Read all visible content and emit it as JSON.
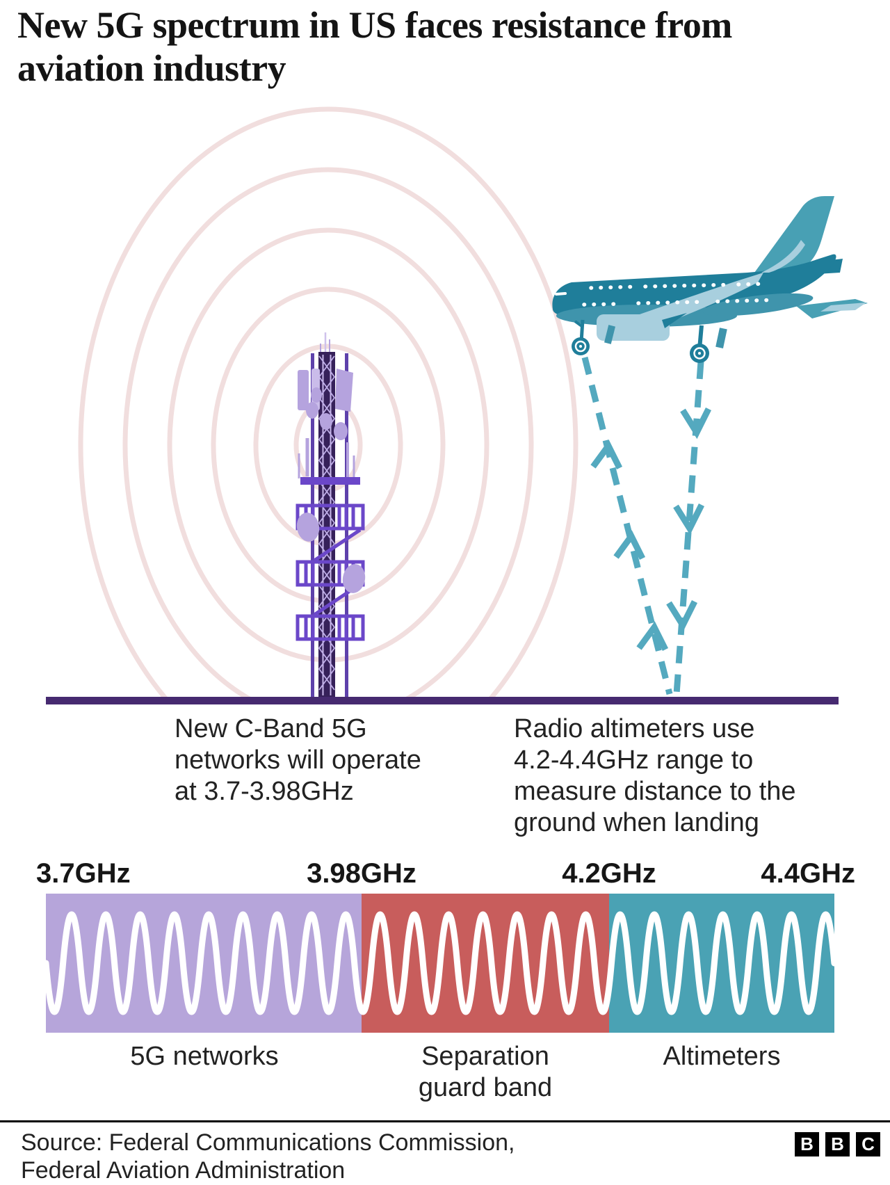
{
  "title": "New 5G spectrum in US faces resistance from aviation industry",
  "illustration": {
    "tower_caption_lines": [
      "New C-Band 5G",
      "networks will operate",
      "at 3.7-3.98GHz"
    ],
    "plane_caption_lines": [
      "Radio altimeters use",
      "4.2-4.4GHz range to",
      "measure distance to the",
      "ground when landing"
    ],
    "icons": [
      "cell-tower-icon",
      "radio-waves-icon",
      "airplane-icon",
      "altimeter-signal-icons"
    ]
  },
  "chart_data": {
    "type": "spectrum-band-diagram",
    "axis_range_ghz": [
      3.7,
      4.4
    ],
    "ticks": [
      {
        "label": "3.7GHz",
        "value": 3.7
      },
      {
        "label": "3.98GHz",
        "value": 3.98
      },
      {
        "label": "4.2GHz",
        "value": 4.2
      },
      {
        "label": "4.4GHz",
        "value": 4.4
      }
    ],
    "bands": [
      {
        "label": "5G networks",
        "from_ghz": 3.7,
        "to_ghz": 3.98,
        "color": "#b6a5da"
      },
      {
        "label": "Separation\nguard band",
        "from_ghz": 3.98,
        "to_ghz": 4.2,
        "color": "#c85d5c"
      },
      {
        "label": "Altimeters",
        "from_ghz": 4.2,
        "to_ghz": 4.4,
        "color": "#4aa2b4"
      }
    ],
    "wave_color": "#ffffff",
    "legend_position": "below-bands",
    "grid": false
  },
  "colors": {
    "ground": "#462a70",
    "tower_main": "#5e41ab",
    "tower_dark": "#36215a",
    "tower_light": "#b5a3de",
    "tower_accent": "#6b47c9",
    "rings": "#f1dede",
    "plane_body": "#1f7e9a",
    "plane_mid": "#3f94ac",
    "plane_light": "#48a0b4",
    "plane_pale": "#a8cfde",
    "signal_dash": "#54a9bf",
    "text": "#1a1a1a"
  },
  "footer": {
    "source": "Source: Federal Communications Commission,\nFederal Aviation Administration",
    "logo_letters": [
      "B",
      "B",
      "C"
    ]
  }
}
